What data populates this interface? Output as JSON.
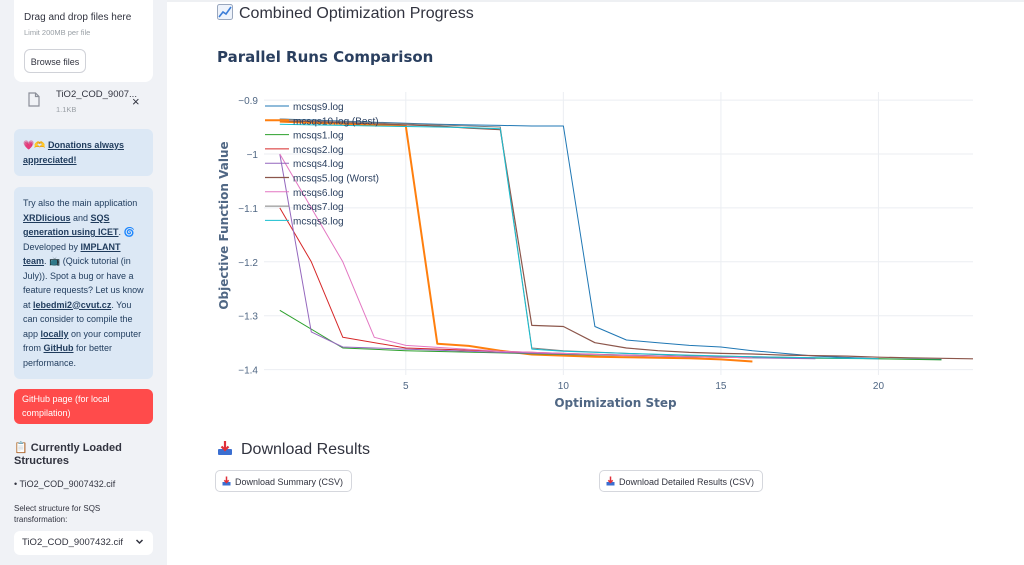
{
  "sidebar": {
    "uploader": {
      "title": "Drag and drop files here",
      "limit": "Limit 200MB per file",
      "browse_label": "Browse files"
    },
    "file": {
      "name": "TiO2_COD_9007...",
      "size": "1.1KB",
      "close": "×"
    },
    "donation": {
      "emoji": "💗🫶",
      "link_text": "Donations always appreciated!"
    },
    "info": {
      "t1": "Try also the main application ",
      "l1": "XRDlicious",
      "t2": " and ",
      "l2": "SQS generation using ICET",
      "t3": ". 🌀 Developed by ",
      "l3": "IMPLANT team",
      "t4": ". 📺 (Quick tutorial (in July)). Spot a bug or have a feature requests? Let us know at ",
      "l4": "lebedmi2@cvut.cz",
      "t5": ". You can consider to compile the app ",
      "l5": "locally",
      "t6": " on your computer from ",
      "l6": "GitHub",
      "t7": " for better performance."
    },
    "github_button": "GitHub page (for local compilation)",
    "loaded": {
      "heading": "📋 Currently Loaded Structures",
      "item": "• TiO2_COD_9007432.cif"
    },
    "select": {
      "label": "Select structure for SQS transformation:",
      "value": "TiO2_COD_9007432.cif"
    }
  },
  "main": {
    "combined_title": "Combined Optimization Progress",
    "chart_title": "Parallel Runs Comparison",
    "download_title": "Download Results",
    "download_summary": "Download Summary (CSV)",
    "download_detailed": "Download Detailed Results (CSV)"
  },
  "colors": {
    "accent": "#ff4b4b",
    "info_bg": "#dce8f5",
    "sidebar_bg": "#f0f2f6"
  },
  "chart_data": {
    "type": "line",
    "title": "Parallel Runs Comparison",
    "xlabel": "Optimization Step",
    "ylabel": "Objective Function Value",
    "xlim": [
      0.5,
      23
    ],
    "ylim": [
      -1.41,
      -0.885
    ],
    "x_ticks": [
      5,
      10,
      15,
      20
    ],
    "y_ticks": [
      -0.9,
      -1,
      -1.1,
      -1.2,
      -1.3,
      -1.4
    ],
    "y_tick_labels": [
      "−0.9",
      "−1",
      "−1.1",
      "−1.2",
      "−1.3",
      "−1.4"
    ],
    "legend_position": "top-left",
    "series": [
      {
        "name": "mcsqs9.log",
        "color": "#1f77b4",
        "width": 1,
        "x": [
          1,
          2,
          3,
          4,
          5,
          6,
          7,
          8,
          9,
          10,
          11,
          12,
          13,
          14,
          15,
          16,
          17,
          18,
          20,
          22
        ],
        "y": [
          -0.935,
          -0.937,
          -0.939,
          -0.941,
          -0.943,
          -0.945,
          -0.946,
          -0.947,
          -0.948,
          -0.948,
          -1.32,
          -1.345,
          -1.35,
          -1.355,
          -1.358,
          -1.365,
          -1.37,
          -1.375,
          -1.38,
          -1.381
        ]
      },
      {
        "name": "mcsqs10.log (Best)",
        "color": "#ff7f0e",
        "width": 2,
        "x": [
          1,
          2,
          3,
          4,
          5,
          6,
          7,
          8,
          9,
          10,
          11,
          12,
          13,
          14,
          15,
          16
        ],
        "y": [
          -0.94,
          -0.942,
          -0.944,
          -0.946,
          -0.948,
          -1.352,
          -1.356,
          -1.365,
          -1.372,
          -1.374,
          -1.376,
          -1.377,
          -1.378,
          -1.379,
          -1.381,
          -1.385
        ]
      },
      {
        "name": "mcsqs1.log",
        "color": "#2ca02c",
        "width": 1,
        "x": [
          1,
          3,
          5,
          8,
          10,
          12,
          14,
          16,
          18,
          20,
          22
        ],
        "y": [
          -1.29,
          -1.36,
          -1.365,
          -1.369,
          -1.372,
          -1.374,
          -1.376,
          -1.378,
          -1.379,
          -1.38,
          -1.382
        ]
      },
      {
        "name": "mcsqs2.log",
        "color": "#d62728",
        "width": 1,
        "x": [
          1,
          2,
          3,
          5,
          8,
          10,
          12,
          14,
          16
        ],
        "y": [
          -1.1,
          -1.2,
          -1.34,
          -1.36,
          -1.366,
          -1.37,
          -1.373,
          -1.376,
          -1.378
        ]
      },
      {
        "name": "mcsqs4.log",
        "color": "#9467bd",
        "width": 1,
        "x": [
          1,
          2,
          3,
          5,
          8,
          10,
          12,
          14,
          16,
          18
        ],
        "y": [
          -1.0,
          -1.33,
          -1.358,
          -1.362,
          -1.368,
          -1.371,
          -1.373,
          -1.376,
          -1.378,
          -1.38
        ]
      },
      {
        "name": "mcsqs5.log (Worst)",
        "color": "#8c564b",
        "width": 1.2,
        "x": [
          1,
          2,
          3,
          4,
          5,
          6,
          7,
          8,
          9,
          10,
          11,
          12,
          13,
          14,
          15,
          16,
          17,
          18,
          19,
          20,
          21,
          22,
          23
        ],
        "y": [
          -0.938,
          -0.94,
          -0.942,
          -0.944,
          -0.946,
          -0.948,
          -0.952,
          -0.955,
          -1.318,
          -1.32,
          -1.35,
          -1.36,
          -1.365,
          -1.368,
          -1.37,
          -1.371,
          -1.373,
          -1.374,
          -1.375,
          -1.377,
          -1.378,
          -1.379,
          -1.38
        ]
      },
      {
        "name": "mcsqs6.log",
        "color": "#e377c2",
        "width": 1,
        "x": [
          1,
          2,
          3,
          4,
          5,
          8,
          10,
          12,
          14,
          16
        ],
        "y": [
          -1.0,
          -1.1,
          -1.2,
          -1.34,
          -1.355,
          -1.366,
          -1.37,
          -1.374,
          -1.376,
          -1.378
        ]
      },
      {
        "name": "mcsqs7.log",
        "color": "#7f7f7f",
        "width": 1,
        "x": [
          1,
          2,
          3,
          4,
          5,
          6,
          7,
          8,
          9,
          10,
          12,
          14,
          16,
          18,
          20
        ],
        "y": [
          -0.935,
          -0.938,
          -0.94,
          -0.942,
          -0.944,
          -0.946,
          -0.948,
          -0.95,
          -1.36,
          -1.365,
          -1.37,
          -1.374,
          -1.376,
          -1.378,
          -1.38
        ]
      },
      {
        "name": "mcsqs8.log",
        "color": "#17becf",
        "width": 1,
        "x": [
          1,
          2,
          3,
          4,
          5,
          6,
          7,
          8,
          9,
          10,
          12,
          14,
          16,
          18,
          20
        ],
        "y": [
          -0.945,
          -0.946,
          -0.947,
          -0.948,
          -0.949,
          -0.95,
          -0.951,
          -0.953,
          -1.362,
          -1.366,
          -1.37,
          -1.373,
          -1.376,
          -1.378,
          -1.38
        ]
      }
    ]
  }
}
